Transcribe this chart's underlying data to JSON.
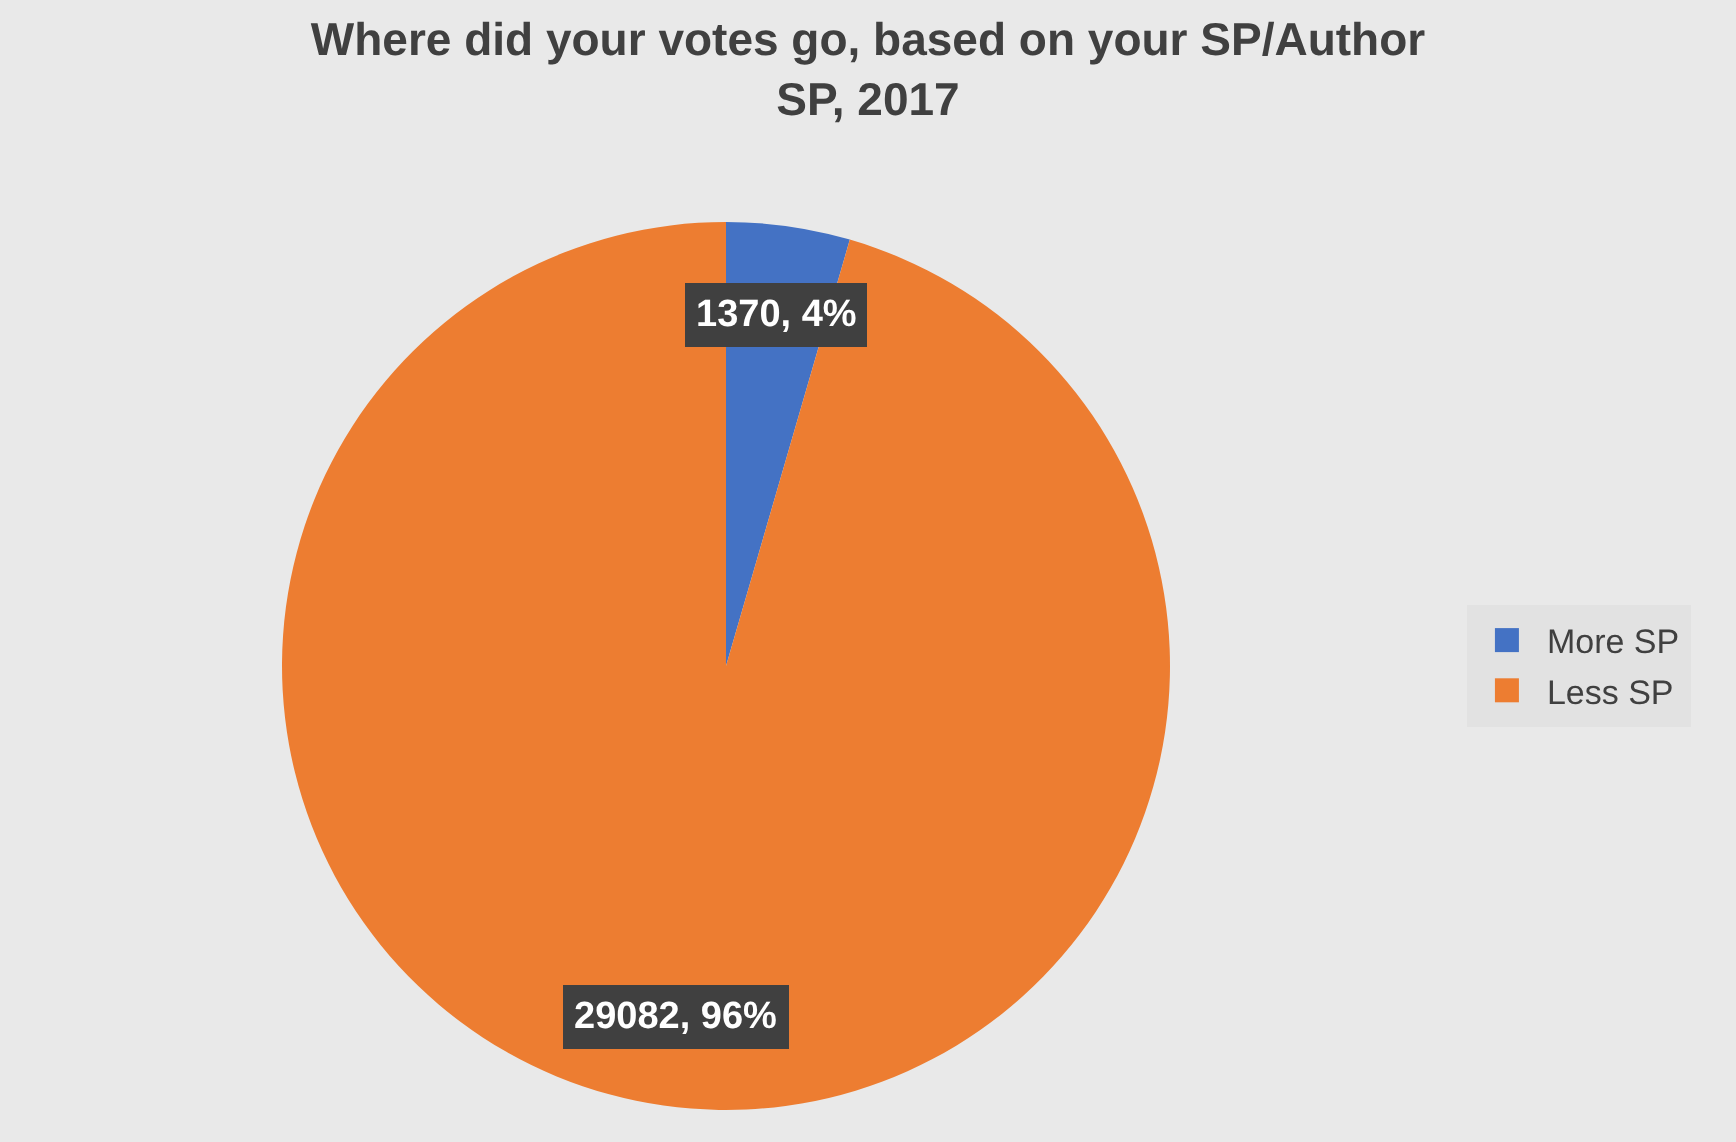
{
  "chart_data": {
    "type": "pie",
    "title": "Where did your votes go, based on your SP/Author SP, 2017",
    "categories": [
      "More SP",
      "Less SP"
    ],
    "values": [
      1370,
      29082
    ],
    "colors": [
      "#4472c4",
      "#ed7d31"
    ],
    "value_labels": [
      "1370, 4%",
      "29082, 96%"
    ],
    "legend": "right"
  }
}
